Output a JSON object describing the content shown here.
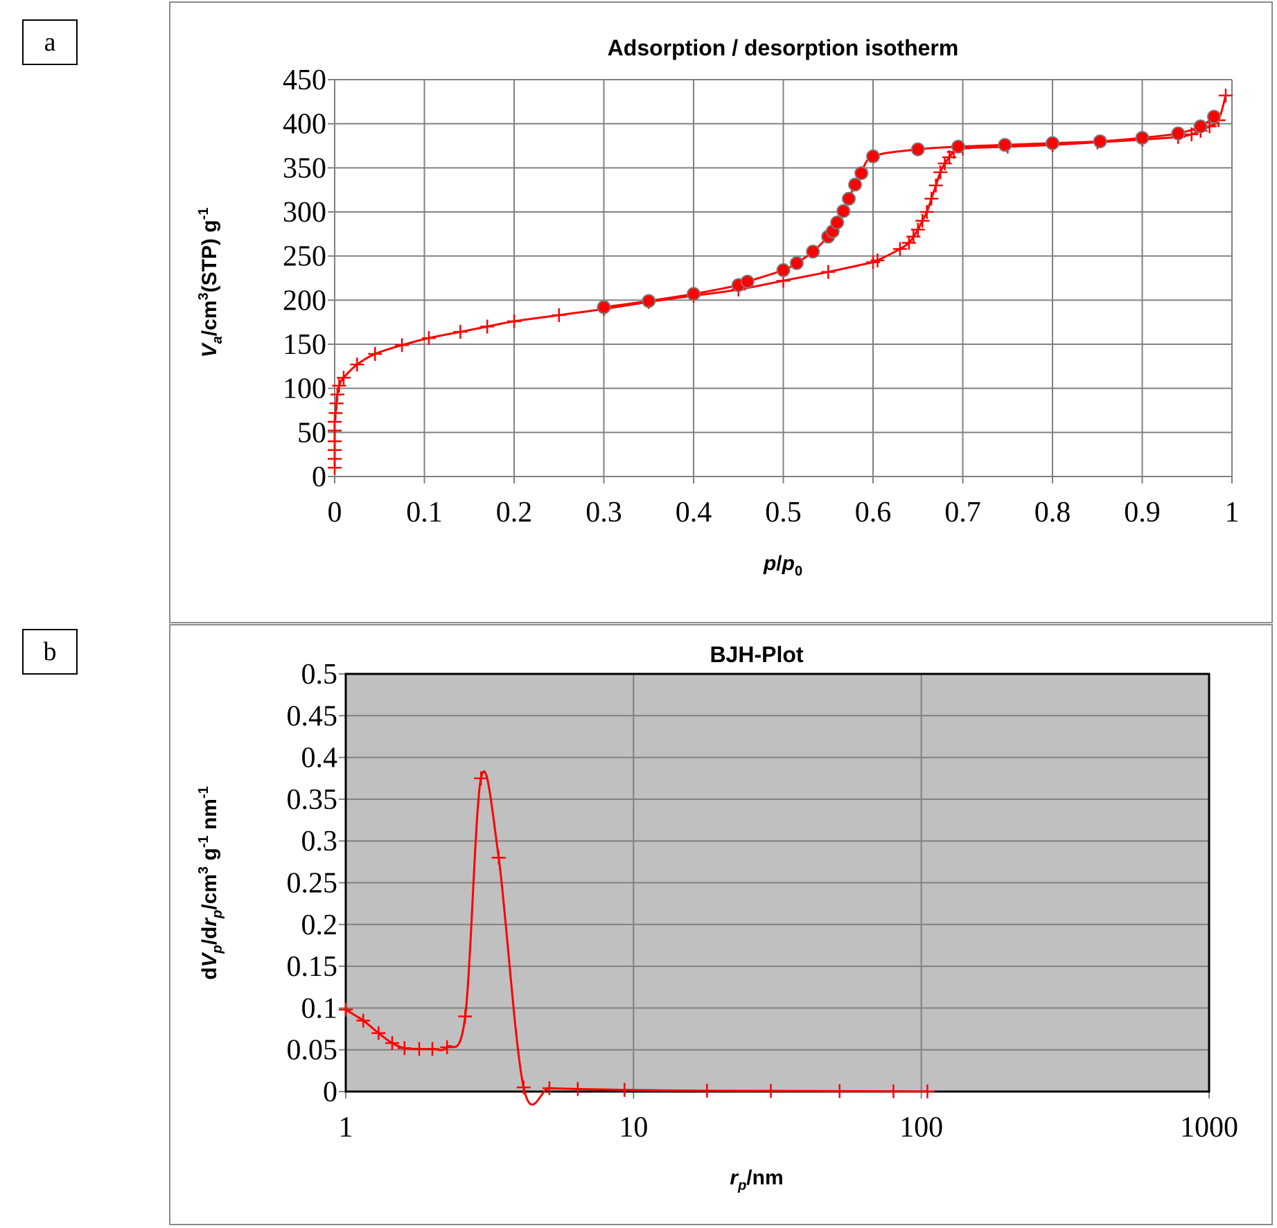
{
  "panels": [
    {
      "label": "a"
    },
    {
      "label": "b"
    }
  ],
  "chart_data": [
    {
      "type": "line",
      "title": "Adsorption / desorption isotherm",
      "xlabel": "p/p0",
      "ylabel": "Va/cm3(STP) g-1",
      "xlim": [
        0,
        1
      ],
      "ylim": [
        0,
        450
      ],
      "xticks": [
        "0",
        "0.1",
        "0.2",
        "0.3",
        "0.4",
        "0.5",
        "0.6",
        "0.7",
        "0.8",
        "0.9",
        "1"
      ],
      "yticks": [
        "0",
        "50",
        "100",
        "150",
        "200",
        "250",
        "300",
        "350",
        "400",
        "450"
      ],
      "grid": true,
      "line_color": "#ff0000",
      "series": [
        {
          "marker": "plus",
          "points": [
            [
              0.0,
              10
            ],
            [
              0.0,
              20
            ],
            [
              0.0,
              30
            ],
            [
              0.0,
              40
            ],
            [
              0.0,
              52
            ],
            [
              0.0,
              62
            ],
            [
              0.001,
              72
            ],
            [
              0.002,
              83
            ],
            [
              0.003,
              93
            ],
            [
              0.005,
              103
            ],
            [
              0.01,
              112
            ],
            [
              0.025,
              127
            ],
            [
              0.045,
              139
            ],
            [
              0.075,
              149
            ],
            [
              0.105,
              157
            ],
            [
              0.14,
              164
            ],
            [
              0.17,
              170
            ],
            [
              0.2,
              176
            ],
            [
              0.25,
              183
            ],
            [
              0.3,
              190
            ],
            [
              0.35,
              198
            ],
            [
              0.4,
              205
            ],
            [
              0.45,
              212
            ],
            [
              0.5,
              222
            ],
            [
              0.55,
              232
            ],
            [
              0.6,
              243
            ],
            [
              0.605,
              245
            ],
            [
              0.63,
              258
            ],
            [
              0.64,
              265
            ],
            [
              0.645,
              272
            ],
            [
              0.65,
              280
            ],
            [
              0.655,
              290
            ],
            [
              0.66,
              300
            ],
            [
              0.665,
              315
            ],
            [
              0.67,
              330
            ],
            [
              0.675,
              345
            ],
            [
              0.68,
              355
            ],
            [
              0.685,
              362
            ],
            [
              0.69,
              368
            ],
            [
              0.7,
              372
            ],
            [
              0.75,
              374
            ],
            [
              0.8,
              376
            ],
            [
              0.85,
              379
            ],
            [
              0.9,
              382
            ],
            [
              0.94,
              385
            ],
            [
              0.955,
              388
            ],
            [
              0.965,
              392
            ],
            [
              0.975,
              397
            ],
            [
              0.985,
              404
            ],
            [
              0.993,
              432
            ]
          ]
        },
        {
          "marker": "circle",
          "points": [
            [
              0.3,
              192
            ],
            [
              0.35,
              199
            ],
            [
              0.4,
              207
            ],
            [
              0.45,
              217
            ],
            [
              0.46,
              221
            ],
            [
              0.5,
              234
            ],
            [
              0.515,
              242
            ],
            [
              0.533,
              255
            ],
            [
              0.55,
              272
            ],
            [
              0.555,
              278
            ],
            [
              0.56,
              288
            ],
            [
              0.567,
              301
            ],
            [
              0.573,
              315
            ],
            [
              0.58,
              331
            ],
            [
              0.587,
              344
            ],
            [
              0.6,
              363
            ],
            [
              0.65,
              371
            ],
            [
              0.695,
              374
            ],
            [
              0.747,
              376
            ],
            [
              0.8,
              378
            ],
            [
              0.853,
              380
            ],
            [
              0.9,
              384
            ],
            [
              0.94,
              389
            ],
            [
              0.965,
              397
            ],
            [
              0.98,
              408
            ]
          ]
        }
      ]
    },
    {
      "type": "line",
      "title": "BJH-Plot",
      "xlabel": "rp/nm",
      "ylabel": "dVp/drp/cm3 g-1 nm-1",
      "xscale": "log",
      "xlim": [
        1,
        1000
      ],
      "ylim": [
        0,
        0.5
      ],
      "xticks": [
        "1",
        "10",
        "100",
        "1000"
      ],
      "yticks": [
        "0",
        "0.05",
        "0.1",
        "0.15",
        "0.2",
        "0.25",
        "0.3",
        "0.35",
        "0.4",
        "0.45",
        "0.5"
      ],
      "grid": true,
      "plot_background": "#c0c0c0",
      "line_color": "#ff0000",
      "series": [
        {
          "marker": "plus",
          "points": [
            [
              1.0,
              0.098
            ],
            [
              1.15,
              0.085
            ],
            [
              1.3,
              0.07
            ],
            [
              1.45,
              0.058
            ],
            [
              1.6,
              0.052
            ],
            [
              1.8,
              0.051
            ],
            [
              2.0,
              0.051
            ],
            [
              2.25,
              0.053
            ],
            [
              2.6,
              0.09
            ],
            [
              2.95,
              0.375
            ],
            [
              3.4,
              0.28
            ],
            [
              4.15,
              0.005
            ],
            [
              5.1,
              0.004
            ],
            [
              6.4,
              0.003
            ],
            [
              9.3,
              0.002
            ],
            [
              18,
              0.001
            ],
            [
              30,
              0.0008
            ],
            [
              52,
              0.0005
            ],
            [
              80,
              0.0003
            ],
            [
              105,
              0.0002
            ]
          ]
        }
      ]
    }
  ]
}
